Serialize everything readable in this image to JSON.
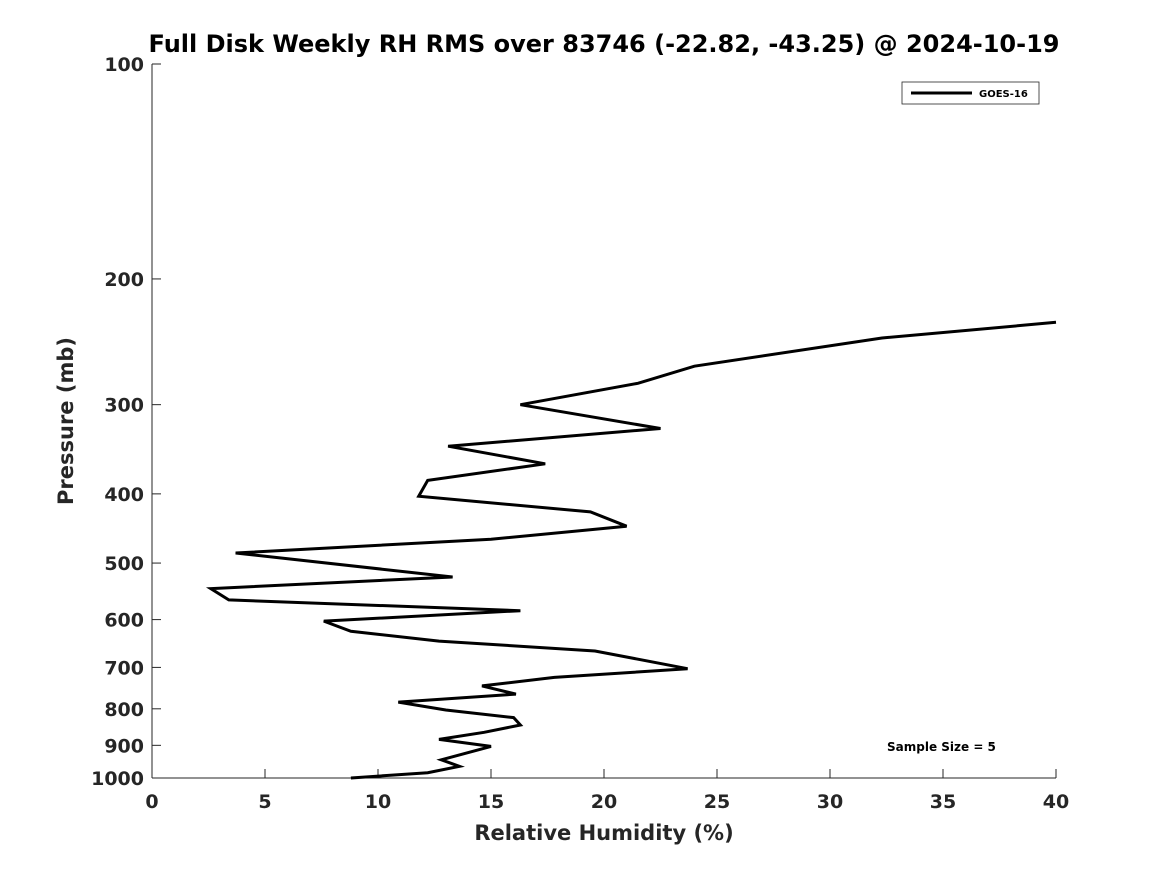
{
  "chart_data": {
    "type": "line",
    "title": "Full Disk Weekly RH RMS over 83746 (-22.82, -43.25) @ 2024-10-19",
    "xlabel": "Relative Humidity (%)",
    "ylabel": "Pressure (mb)",
    "xlim": [
      0,
      40
    ],
    "ylim": [
      100,
      1000
    ],
    "y_scale": "log",
    "y_reversed": true,
    "x_ticks": [
      "0",
      "5",
      "10",
      "15",
      "20",
      "25",
      "30",
      "35",
      "40"
    ],
    "y_ticks": [
      "100",
      "200",
      "300",
      "400",
      "500",
      "600",
      "700",
      "800",
      "900",
      "1000"
    ],
    "grid": false,
    "legend_position": "top-right",
    "series": [
      {
        "name": "GOES-16",
        "color": "#000000",
        "points": [
          {
            "x": 40.0,
            "y": 230
          },
          {
            "x": 32.3,
            "y": 242
          },
          {
            "x": 24.0,
            "y": 265
          },
          {
            "x": 21.5,
            "y": 280
          },
          {
            "x": 16.3,
            "y": 300
          },
          {
            "x": 22.5,
            "y": 324
          },
          {
            "x": 13.1,
            "y": 343
          },
          {
            "x": 17.4,
            "y": 363
          },
          {
            "x": 12.2,
            "y": 383
          },
          {
            "x": 11.8,
            "y": 403
          },
          {
            "x": 19.4,
            "y": 424
          },
          {
            "x": 21.0,
            "y": 444
          },
          {
            "x": 15.0,
            "y": 463
          },
          {
            "x": 3.7,
            "y": 484
          },
          {
            "x": 13.3,
            "y": 523
          },
          {
            "x": 2.6,
            "y": 543
          },
          {
            "x": 3.4,
            "y": 563
          },
          {
            "x": 16.3,
            "y": 583
          },
          {
            "x": 7.6,
            "y": 603
          },
          {
            "x": 8.8,
            "y": 623
          },
          {
            "x": 12.7,
            "y": 643
          },
          {
            "x": 19.6,
            "y": 664
          },
          {
            "x": 23.7,
            "y": 703
          },
          {
            "x": 17.8,
            "y": 723
          },
          {
            "x": 14.6,
            "y": 743
          },
          {
            "x": 16.1,
            "y": 763
          },
          {
            "x": 10.9,
            "y": 783
          },
          {
            "x": 13.0,
            "y": 803
          },
          {
            "x": 16.0,
            "y": 823
          },
          {
            "x": 16.3,
            "y": 843
          },
          {
            "x": 14.7,
            "y": 863
          },
          {
            "x": 12.7,
            "y": 883
          },
          {
            "x": 15.0,
            "y": 903
          },
          {
            "x": 12.8,
            "y": 943
          },
          {
            "x": 13.6,
            "y": 963
          },
          {
            "x": 12.2,
            "y": 983
          },
          {
            "x": 8.8,
            "y": 1000
          }
        ]
      }
    ],
    "annotations": [
      {
        "text": "Sample Size = 5",
        "position": "bottom-right"
      }
    ]
  }
}
